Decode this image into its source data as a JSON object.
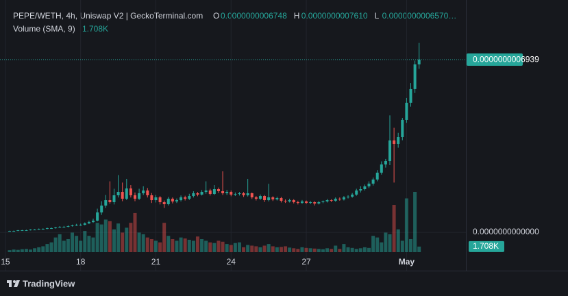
{
  "chart_data": {
    "type": "candlestick",
    "title": "PEPE/WETH, 4h, Uniswap V2 | GeckoTerminal.com",
    "ohlc_legend": [
      {
        "key": "O",
        "text": "0.0000000006748"
      },
      {
        "key": "H",
        "text": "0.0000000007610"
      },
      {
        "key": "L",
        "text": "0.0000000006570…"
      }
    ],
    "volume_title": "Volume (SMA, 9)",
    "volume_last_label": "1.708K",
    "brand": "TradingView",
    "up_color": "#26a69a",
    "down_color": "#ef5350",
    "xlim": [
      -2.3,
      109.2
    ],
    "xticks": [
      {
        "value": -1,
        "label": "15"
      },
      {
        "value": 17,
        "label": "18"
      },
      {
        "value": 35,
        "label": "21"
      },
      {
        "value": 53,
        "label": "24"
      },
      {
        "value": 71,
        "label": "27"
      },
      {
        "value": 95,
        "label": "May"
      }
    ],
    "ylim": [
      -1.54e-10,
      9.06e-10
    ],
    "yticks": [
      {
        "value": 0,
        "label": "0.0000000000000"
      }
    ],
    "last_price": {
      "value": 6.939e-10,
      "label": "0.0000000006939"
    },
    "ohlc": [
      [
        4.5e-12,
        6.5e-12,
        3.5e-12,
        5.5e-12
      ],
      [
        5.5e-12,
        7e-12,
        4.5e-12,
        5.5e-12
      ],
      [
        5.5e-12,
        9.5e-12,
        5e-12,
        8.3e-12
      ],
      [
        8.3e-12,
        1e-11,
        7e-12,
        8.3e-12
      ],
      [
        8.3e-12,
        1.05e-11,
        6.5e-12,
        8.3e-12
      ],
      [
        8.3e-12,
        1.25e-11,
        7.5e-12,
        1.1e-11
      ],
      [
        1.1e-11,
        1.3e-11,
        9.5e-12,
        1.1e-11
      ],
      [
        1.1e-11,
        1.55e-11,
        1e-11,
        1.38e-11
      ],
      [
        1.38e-11,
        1.6e-11,
        1.2e-11,
        1.38e-11
      ],
      [
        1.38e-11,
        1.9e-11,
        1.25e-11,
        1.65e-11
      ],
      [
        1.65e-11,
        1.95e-11,
        1.4e-11,
        1.65e-11
      ],
      [
        1.65e-11,
        2.2e-11,
        1.5e-11,
        1.93e-11
      ],
      [
        1.93e-11,
        2.5e-11,
        1.8e-11,
        2.2e-11
      ],
      [
        2.2e-11,
        2.55e-11,
        1.9e-11,
        2.2e-11
      ],
      [
        2.2e-11,
        2.8e-11,
        2.05e-11,
        2.48e-11
      ],
      [
        2.48e-11,
        3.1e-11,
        2.3e-11,
        2.76e-11
      ],
      [
        2.76e-11,
        3.4e-11,
        2.55e-11,
        3.03e-11
      ],
      [
        3.03e-11,
        3.5e-11,
        2.6e-11,
        3.03e-11
      ],
      [
        3.03e-11,
        4e-11,
        2.8e-11,
        3.58e-11
      ],
      [
        3.58e-11,
        4.7e-11,
        3.3e-11,
        4.13e-11
      ],
      [
        4.13e-11,
        5.5e-11,
        3.8e-11,
        4.68e-11
      ],
      [
        4.68e-11,
        9.5e-11,
        4.4e-11,
        7.99e-11
      ],
      [
        7.99e-11,
        1.25e-10,
        7e-11,
        1.074e-10
      ],
      [
        1.074e-10,
        1.5e-10,
        9.8e-11,
        1.295e-10
      ],
      [
        1.295e-10,
        2.05e-10,
        1.15e-10,
        1.212e-10
      ],
      [
        1.212e-10,
        1.75e-10,
        1.12e-10,
        1.488e-10
      ],
      [
        1.488e-10,
        2.3e-10,
        1.4e-10,
        1.625e-10
      ],
      [
        1.625e-10,
        2e-10,
        1.25e-10,
        1.35e-10
      ],
      [
        1.35e-10,
        2.15e-10,
        1.3e-10,
        1.763e-10
      ],
      [
        1.763e-10,
        1.9e-10,
        1.4e-10,
        1.488e-10
      ],
      [
        1.488e-10,
        1.6e-10,
        1.25e-10,
        1.35e-10
      ],
      [
        1.35e-10,
        1.75e-10,
        1.3e-10,
        1.57e-10
      ],
      [
        1.57e-10,
        1.85e-10,
        1.5e-10,
        1.68e-10
      ],
      [
        1.68e-10,
        1.78e-10,
        1.4e-10,
        1.488e-10
      ],
      [
        1.488e-10,
        1.58e-10,
        1.18e-10,
        1.295e-10
      ],
      [
        1.295e-10,
        1.5e-10,
        1.2e-10,
        1.405e-10
      ],
      [
        1.405e-10,
        1.46e-10,
        1.12e-10,
        1.212e-10
      ],
      [
        1.212e-10,
        1.28e-10,
        9.8e-11,
        1.13e-10
      ],
      [
        1.13e-10,
        1.42e-10,
        1.08e-10,
        1.35e-10
      ],
      [
        1.35e-10,
        1.4e-10,
        1.16e-10,
        1.24e-10
      ],
      [
        1.24e-10,
        1.36e-10,
        1.18e-10,
        1.295e-10
      ],
      [
        1.295e-10,
        1.48e-10,
        1.24e-10,
        1.405e-10
      ],
      [
        1.405e-10,
        1.47e-10,
        1.28e-10,
        1.35e-10
      ],
      [
        1.35e-10,
        1.55e-10,
        1.3e-10,
        1.46e-10
      ],
      [
        1.46e-10,
        1.65e-10,
        1.4e-10,
        1.57e-10
      ],
      [
        1.57e-10,
        1.62e-10,
        1.45e-10,
        1.515e-10
      ],
      [
        1.515e-10,
        1.7e-10,
        1.48e-10,
        1.625e-10
      ],
      [
        1.625e-10,
        2.05e-10,
        1.55e-10,
        1.68e-10
      ],
      [
        1.68e-10,
        1.75e-10,
        1.48e-10,
        1.543e-10
      ],
      [
        1.543e-10,
        1.9e-10,
        1.5e-10,
        1.736e-10
      ],
      [
        1.736e-10,
        1.8e-10,
        1.58e-10,
        1.653e-10
      ],
      [
        1.653e-10,
        2.45e-10,
        1.5e-10,
        1.57e-10
      ],
      [
        1.57e-10,
        1.7e-10,
        1.5e-10,
        1.625e-10
      ],
      [
        1.625e-10,
        1.68e-10,
        1.45e-10,
        1.515e-10
      ],
      [
        1.515e-10,
        1.6e-10,
        1.46e-10,
        1.543e-10
      ],
      [
        1.543e-10,
        1.62e-10,
        1.48e-10,
        1.57e-10
      ],
      [
        1.57e-10,
        1.62e-10,
        1.42e-10,
        1.488e-10
      ],
      [
        1.488e-10,
        2.15e-10,
        1.44e-10,
        1.57e-10
      ],
      [
        1.57e-10,
        1.6e-10,
        1.34e-10,
        1.405e-10
      ],
      [
        1.405e-10,
        1.46e-10,
        1.28e-10,
        1.35e-10
      ],
      [
        1.35e-10,
        1.52e-10,
        1.3e-10,
        1.46e-10
      ],
      [
        1.46e-10,
        1.5e-10,
        1.22e-10,
        1.295e-10
      ],
      [
        1.295e-10,
        1.95e-10,
        1.24e-10,
        1.405e-10
      ],
      [
        1.405e-10,
        1.45e-10,
        1.26e-10,
        1.322e-10
      ],
      [
        1.322e-10,
        1.43e-10,
        1.28e-10,
        1.378e-10
      ],
      [
        1.378e-10,
        1.42e-10,
        1.2e-10,
        1.267e-10
      ],
      [
        1.267e-10,
        1.32e-10,
        1.18e-10,
        1.24e-10
      ],
      [
        1.24e-10,
        1.35e-10,
        1.2e-10,
        1.295e-10
      ],
      [
        1.295e-10,
        1.33e-10,
        1.16e-10,
        1.212e-10
      ],
      [
        1.212e-10,
        1.27e-10,
        1.12e-10,
        1.185e-10
      ],
      [
        1.185e-10,
        1.3e-10,
        1.14e-10,
        1.24e-10
      ],
      [
        1.24e-10,
        1.28e-10,
        1.14e-10,
        1.185e-10
      ],
      [
        1.185e-10,
        1.26e-10,
        1.13e-10,
        1.212e-10
      ],
      [
        1.212e-10,
        1.25e-10,
        1.08e-10,
        1.157e-10
      ],
      [
        1.157e-10,
        1.26e-10,
        1.12e-10,
        1.212e-10
      ],
      [
        1.212e-10,
        1.28e-10,
        1.17e-10,
        1.24e-10
      ],
      [
        1.24e-10,
        1.34e-10,
        1.2e-10,
        1.295e-10
      ],
      [
        1.295e-10,
        1.33e-10,
        1.22e-10,
        1.267e-10
      ],
      [
        1.267e-10,
        1.4e-10,
        1.23e-10,
        1.35e-10
      ],
      [
        1.35e-10,
        1.4e-10,
        1.27e-10,
        1.322e-10
      ],
      [
        1.322e-10,
        1.46e-10,
        1.28e-10,
        1.405e-10
      ],
      [
        1.405e-10,
        1.49e-10,
        1.36e-10,
        1.433e-10
      ],
      [
        1.433e-10,
        1.58e-10,
        1.39e-10,
        1.515e-10
      ],
      [
        1.515e-10,
        1.75e-10,
        1.47e-10,
        1.68e-10
      ],
      [
        1.68e-10,
        1.85e-10,
        1.6e-10,
        1.736e-10
      ],
      [
        1.736e-10,
        1.92e-10,
        1.68e-10,
        1.846e-10
      ],
      [
        1.846e-10,
        2.05e-10,
        1.78e-10,
        1.956e-10
      ],
      [
        1.956e-10,
        2.2e-10,
        1.88e-10,
        2.121e-10
      ],
      [
        2.121e-10,
        2.5e-10,
        2.05e-10,
        2.397e-10
      ],
      [
        2.397e-10,
        2.85e-10,
        2.32e-10,
        2.727e-10
      ],
      [
        2.727e-10,
        2.95e-10,
        2.6e-10,
        2.865e-10
      ],
      [
        2.865e-10,
        4.7e-10,
        2.7e-10,
        3.692e-10
      ],
      [
        3.692e-10,
        4.2e-10,
        2e-10,
        3.554e-10
      ],
      [
        3.554e-10,
        4e-10,
        3.4e-10,
        3.829e-10
      ],
      [
        3.829e-10,
        4.6e-10,
        3.7e-10,
        4.518e-10
      ],
      [
        4.518e-10,
        5.4e-10,
        4.4e-10,
        5.207e-10
      ],
      [
        5.207e-10,
        6e-10,
        5.05e-10,
        5.758e-10
      ],
      [
        5.758e-10,
        6.9e-10,
        5.6e-10,
        6.748e-10
      ],
      [
        6.748e-10,
        7.61e-10,
        6.57e-10,
        6.939e-10
      ]
    ],
    "volume": [
      600,
      800,
      700,
      900,
      1000,
      800,
      1200,
      1500,
      1800,
      2500,
      3000,
      4500,
      5500,
      3500,
      4000,
      6000,
      5000,
      3500,
      6500,
      5000,
      4500,
      9000,
      8500,
      10000,
      9500,
      7000,
      8800,
      6000,
      7500,
      9000,
      12000,
      6000,
      5500,
      4500,
      4000,
      3500,
      3000,
      9000,
      5000,
      4000,
      3500,
      4500,
      4200,
      3800,
      3500,
      4800,
      4000,
      3500,
      3000,
      2800,
      3500,
      3200,
      2500,
      2200,
      2800,
      3000,
      1500,
      2200,
      2000,
      1800,
      1500,
      2000,
      2500,
      1800,
      1500,
      1600,
      1800,
      1400,
      1200,
      1000,
      1500,
      1300,
      1200,
      1100,
      1000,
      900,
      1200,
      1000,
      2000,
      1000,
      2500,
      1500,
      1300,
      1000,
      1200,
      1500,
      1300,
      5000,
      4500,
      3000,
      6000,
      5500,
      14500,
      7000,
      3500,
      16500,
      4000,
      18500,
      1708
    ]
  }
}
